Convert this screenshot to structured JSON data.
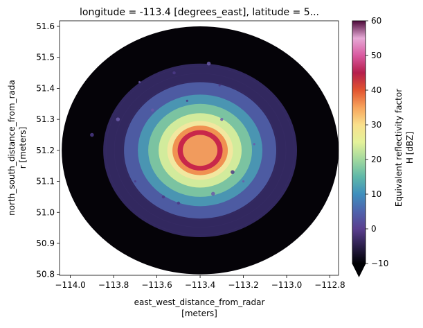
{
  "chart_data": {
    "type": "heatmap",
    "title": "longitude = -113.4 [degrees_east], latitude = 5...",
    "xlabel_line1": "east_west_distance_from_radar",
    "xlabel_line2": "[meters]",
    "ylabel_line1": "north_south_distance_from_rada",
    "ylabel_line2": "r [meters]",
    "xlim": [
      -114.05,
      -112.76
    ],
    "ylim": [
      50.797,
      51.618
    ],
    "xticks": [
      {
        "value": -114.0,
        "label": "−114.0"
      },
      {
        "value": -113.8,
        "label": "−113.8"
      },
      {
        "value": -113.6,
        "label": "−113.6"
      },
      {
        "value": -113.4,
        "label": "−113.4"
      },
      {
        "value": -113.2,
        "label": "−113.2"
      },
      {
        "value": -113.0,
        "label": "−113.0"
      },
      {
        "value": -112.8,
        "label": "−112.8"
      }
    ],
    "yticks": [
      {
        "value": 50.8,
        "label": "50.8"
      },
      {
        "value": 50.9,
        "label": "50.9"
      },
      {
        "value": 51.0,
        "label": "51.0"
      },
      {
        "value": 51.1,
        "label": "51.1"
      },
      {
        "value": 51.2,
        "label": "51.2"
      },
      {
        "value": 51.3,
        "label": "51.3"
      },
      {
        "value": 51.4,
        "label": "51.4"
      },
      {
        "value": 51.5,
        "label": "51.5"
      },
      {
        "value": 51.6,
        "label": "51.6"
      }
    ],
    "radar": {
      "center_lon": -113.4,
      "center_lat": 51.2,
      "range_lon": 0.64,
      "range_lat": 0.4,
      "background_dbz": -10
    },
    "echo_rings": [
      {
        "radius_fraction": 0.28,
        "dbz": 0,
        "color": "#3b2f6e"
      },
      {
        "radius_fraction": 0.22,
        "dbz": 8,
        "color": "#4f5fa8"
      },
      {
        "radius_fraction": 0.18,
        "dbz": 12,
        "color": "#4a9ab3"
      },
      {
        "radius_fraction": 0.15,
        "dbz": 18,
        "color": "#7fc7a0"
      },
      {
        "radius_fraction": 0.12,
        "dbz": 23,
        "color": "#d9ef9b"
      },
      {
        "radius_fraction": 0.095,
        "dbz": 28,
        "color": "#f4e6a0"
      },
      {
        "radius_fraction": 0.08,
        "dbz": 35,
        "color": "#f08a4a"
      },
      {
        "radius_fraction": 0.065,
        "dbz": 42,
        "color": "#c41e4a"
      },
      {
        "radius_fraction": 0.05,
        "dbz": 36,
        "color": "#f4a55e"
      }
    ],
    "colorbar": {
      "colormap": "spectral_r",
      "label_line1": "Equivalent reflectivity factor",
      "label_line2": "H [dBZ]",
      "vmin": -10,
      "vmax": 60,
      "extend": "min",
      "ticks": [
        {
          "value": -10,
          "label": "−10"
        },
        {
          "value": 0,
          "label": "0"
        },
        {
          "value": 10,
          "label": "10"
        },
        {
          "value": 20,
          "label": "20"
        },
        {
          "value": 30,
          "label": "30"
        },
        {
          "value": 40,
          "label": "40"
        },
        {
          "value": 50,
          "label": "50"
        },
        {
          "value": 60,
          "label": "60"
        }
      ],
      "stops": [
        {
          "value": -10,
          "color": "#000004"
        },
        {
          "value": -5,
          "color": "#2b1f4a"
        },
        {
          "value": 0,
          "color": "#5a3f8f"
        },
        {
          "value": 5,
          "color": "#4f63ad"
        },
        {
          "value": 10,
          "color": "#3f8fbd"
        },
        {
          "value": 15,
          "color": "#5fb8a8"
        },
        {
          "value": 20,
          "color": "#a2d99e"
        },
        {
          "value": 25,
          "color": "#e4f29a"
        },
        {
          "value": 30,
          "color": "#f9e08c"
        },
        {
          "value": 35,
          "color": "#f7a45c"
        },
        {
          "value": 40,
          "color": "#e2542f"
        },
        {
          "value": 45,
          "color": "#b51e4c"
        },
        {
          "value": 50,
          "color": "#d95aa0"
        },
        {
          "value": 55,
          "color": "#e6a9d6"
        },
        {
          "value": 60,
          "color": "#4d0a3a"
        }
      ]
    }
  }
}
